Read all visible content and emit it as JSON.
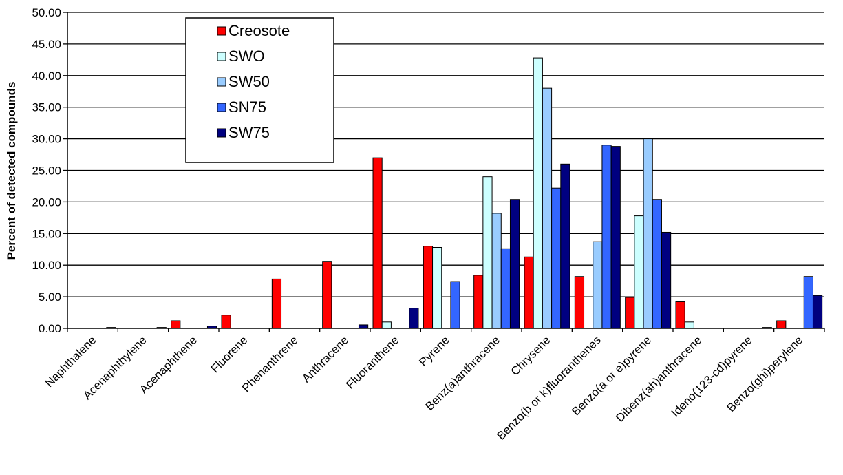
{
  "chart_data": {
    "type": "bar",
    "title": "",
    "xlabel": "",
    "ylabel": "Percent of detected compounds",
    "ylim": [
      0,
      50
    ],
    "yticks": [
      "0.00",
      "5.00",
      "10.00",
      "15.00",
      "20.00",
      "25.00",
      "30.00",
      "35.00",
      "40.00",
      "45.00",
      "50.00"
    ],
    "grid": "horizontal",
    "legend_position": "top-left inside",
    "categories": [
      "Naphthalene",
      "Acenaphthylene",
      "Acenaphthene",
      "Fluorene",
      "Phenanthrene",
      "Anthracene",
      "Fluoranthene",
      "Pyrene",
      "Benz(a)anthracene",
      "Chrysene",
      "Benzo(b or k)fluoranthenes",
      "Benzo(a or e)pyrene",
      "Dibenz(ah)anthracene",
      "Ideno(123-cd)pyrene",
      "Benzo(ghi)perylene"
    ],
    "series": [
      {
        "name": "Creosote",
        "color": "#ff0000",
        "values": [
          0,
          0,
          1.2,
          2.1,
          7.8,
          10.6,
          27.0,
          13.0,
          8.4,
          11.3,
          8.2,
          4.9,
          4.3,
          0,
          1.2
        ]
      },
      {
        "name": "SWO",
        "color": "#ccffff",
        "values": [
          0,
          0,
          0,
          0,
          0,
          0,
          1.0,
          12.8,
          24.0,
          42.8,
          0,
          17.8,
          1.0,
          0,
          0
        ]
      },
      {
        "name": "SW50",
        "color": "#99ccff",
        "values": [
          0,
          0,
          0,
          0,
          0,
          0,
          0,
          0,
          18.2,
          38.0,
          13.7,
          30.0,
          0,
          0,
          0
        ]
      },
      {
        "name": "SN75",
        "color": "#3366ff",
        "values": [
          0,
          0,
          0,
          0,
          0,
          0,
          0,
          7.4,
          12.6,
          22.2,
          29.0,
          20.4,
          0,
          0,
          8.2
        ]
      },
      {
        "name": "SW75",
        "color": "#000080",
        "values": [
          0.15,
          0.15,
          0.35,
          0,
          0,
          0.55,
          3.2,
          0,
          20.4,
          26.0,
          28.8,
          15.2,
          0,
          0.15,
          5.2
        ]
      }
    ]
  }
}
